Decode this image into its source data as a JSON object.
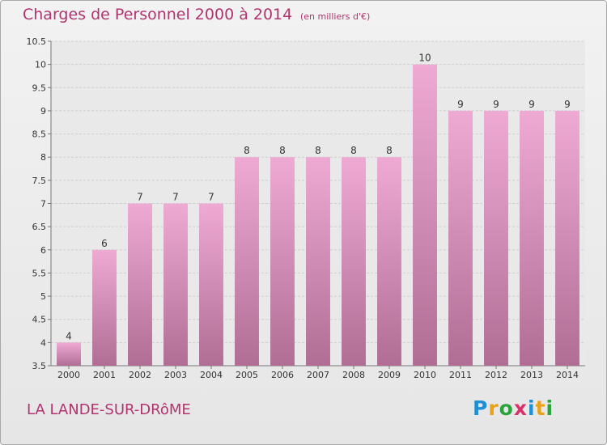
{
  "header": {
    "title": "Charges de Personnel 2000 à 2014",
    "subtitle": "(en milliers d'€)"
  },
  "footer": {
    "commune": "LA LANDE-SUR-DRôME",
    "logo_letters": [
      "P",
      "r",
      "o",
      "x",
      "i",
      "t",
      "i"
    ],
    "logo_colors": [
      "#1f8fd6",
      "#e8a21a",
      "#2aa33a",
      "#d6336b",
      "#1f8fd6",
      "#e8a21a",
      "#2aa33a"
    ]
  },
  "colors": {
    "title": "#b0346f",
    "bar_top": "#eeaad3",
    "bar_bottom": "#b06e95"
  },
  "chart_data": {
    "type": "bar",
    "title": "Charges de Personnel 2000 à 2014",
    "subtitle": "(en milliers d'€)",
    "categories": [
      "2000",
      "2001",
      "2002",
      "2003",
      "2004",
      "2005",
      "2006",
      "2007",
      "2008",
      "2009",
      "2010",
      "2011",
      "2012",
      "2013",
      "2014"
    ],
    "values": [
      4,
      6,
      7,
      7,
      7,
      8,
      8,
      8,
      8,
      8,
      10,
      9,
      9,
      9,
      9
    ],
    "ylim": [
      3.5,
      10.5
    ],
    "yticks": [
      "3.5",
      "4",
      "4.5",
      "5",
      "5.5",
      "6",
      "6.5",
      "7",
      "7.5",
      "8",
      "8.5",
      "9",
      "9.5",
      "10",
      "10.5"
    ],
    "grid": true
  }
}
